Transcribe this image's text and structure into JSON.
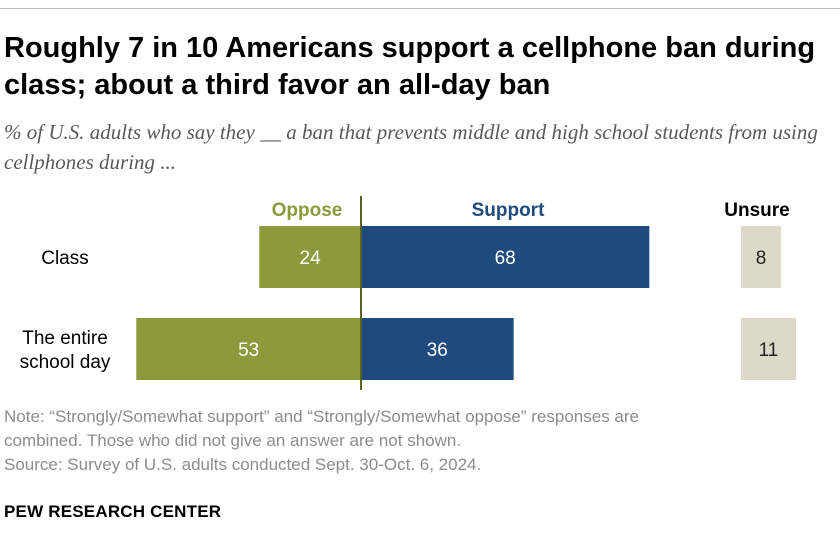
{
  "title": "Roughly 7 in 10 Americans support a cellphone ban during class; about a third favor an all-day ban",
  "subtitle": "% of U.S. adults who say they __ a ban that prevents middle and high school students from using cellphones during ...",
  "chart_data": {
    "type": "bar",
    "orientation": "horizontal-diverging",
    "categories": [
      "Class",
      "The entire school day"
    ],
    "category_lines": [
      [
        "Class"
      ],
      [
        "The entire",
        "school day"
      ]
    ],
    "series": [
      {
        "name": "Oppose",
        "values": [
          24,
          53
        ],
        "color": "#8c9a3c"
      },
      {
        "name": "Support",
        "values": [
          68,
          36
        ],
        "color": "#1f4a7d"
      },
      {
        "name": "Unsure",
        "values": [
          8,
          11
        ],
        "color": "#ddd9c9"
      }
    ],
    "axis_line_color": "#5a6324",
    "label_text_color": "#ffffff",
    "unsure_text_color": "#222222"
  },
  "note_line1": "Note: “Strongly/Somewhat support” and “Strongly/Somewhat oppose” responses are",
  "note_line2": "combined. Those who did not give an answer are not shown.",
  "source": "Source: Survey of U.S. adults conducted Sept. 30-Oct. 6, 2024.",
  "brand": "PEW RESEARCH CENTER"
}
